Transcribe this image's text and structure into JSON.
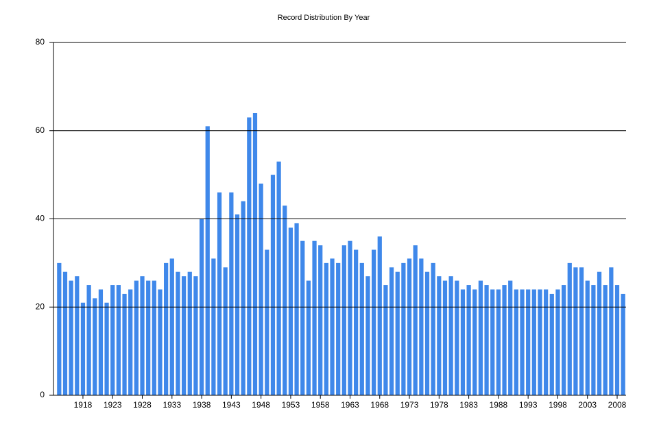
{
  "chart_data": {
    "type": "bar",
    "title": "Record Distribution By Year",
    "categories": [
      null,
      null,
      null,
      null,
      "1918",
      null,
      null,
      null,
      null,
      "1923",
      null,
      null,
      null,
      null,
      "1928",
      null,
      null,
      null,
      null,
      "1933",
      null,
      null,
      null,
      null,
      "1938",
      null,
      null,
      null,
      null,
      "1943",
      null,
      null,
      null,
      null,
      "1948",
      null,
      null,
      null,
      null,
      "1953",
      null,
      null,
      null,
      null,
      "1958",
      null,
      null,
      null,
      null,
      "1963",
      null,
      null,
      null,
      null,
      "1968",
      null,
      null,
      null,
      null,
      "1973",
      null,
      null,
      null,
      null,
      "1978",
      null,
      null,
      null,
      null,
      "1983",
      null,
      null,
      null,
      null,
      "1988",
      null,
      null,
      null,
      null,
      "1993",
      null,
      null,
      null,
      null,
      "1998",
      null,
      null,
      null,
      null,
      "2003",
      null,
      null,
      null,
      null,
      "2008",
      null
    ],
    "values": [
      30,
      28,
      26,
      27,
      21,
      25,
      22,
      24,
      21,
      25,
      25,
      23,
      24,
      26,
      27,
      26,
      26,
      24,
      30,
      31,
      28,
      27,
      28,
      27,
      40,
      61,
      31,
      46,
      29,
      46,
      41,
      44,
      63,
      64,
      48,
      33,
      50,
      53,
      43,
      38,
      39,
      35,
      26,
      35,
      34,
      30,
      31,
      30,
      34,
      35,
      33,
      30,
      27,
      33,
      36,
      25,
      29,
      28,
      30,
      31,
      34,
      31,
      28,
      30,
      27,
      26,
      27,
      26,
      24,
      25,
      24,
      26,
      25,
      24,
      24,
      25,
      26,
      24,
      24,
      24,
      24,
      24,
      24,
      23,
      24,
      25,
      30,
      29,
      29,
      26,
      25,
      28,
      25,
      29,
      25,
      23
    ],
    "color": "#3f88ea",
    "ylim": [
      0,
      80
    ],
    "yticks": [
      0,
      20,
      40,
      60,
      80
    ],
    "grid": true
  }
}
